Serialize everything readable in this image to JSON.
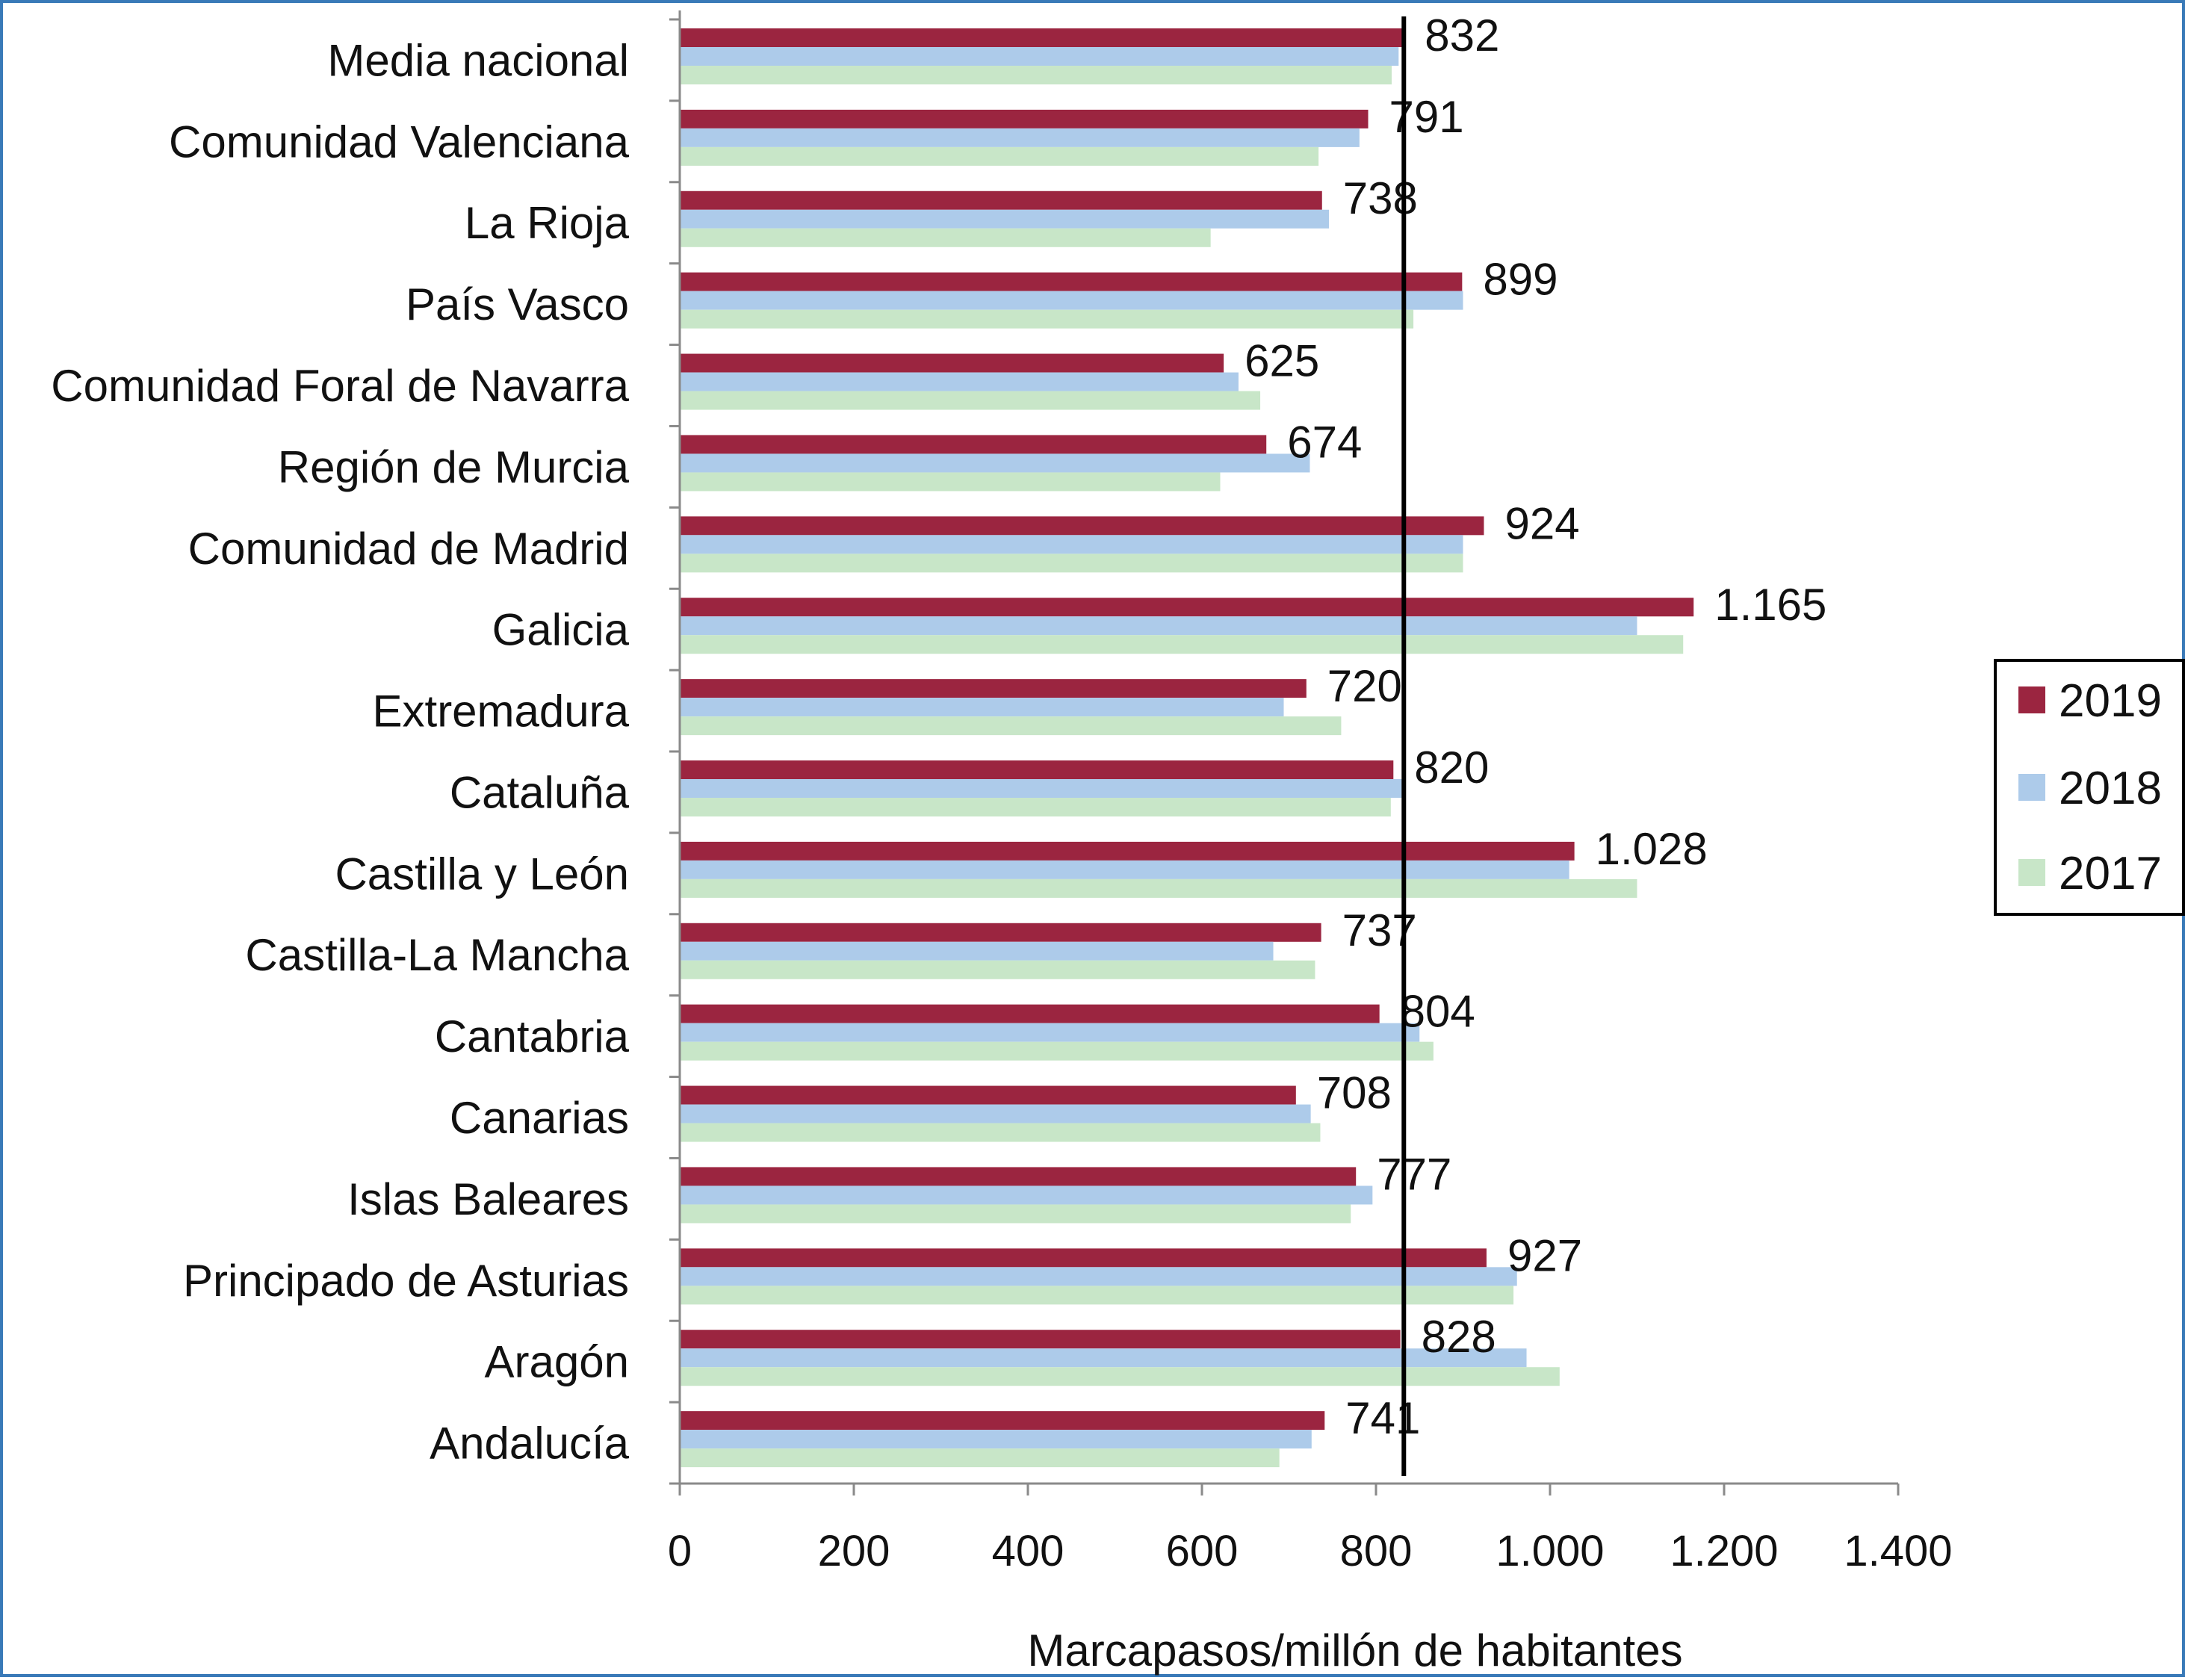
{
  "chart_data": {
    "type": "bar",
    "orientation": "horizontal",
    "categories": [
      "Media nacional",
      "Comunidad Valenciana",
      "La Rioja",
      "País Vasco",
      "Comunidad Foral de Navarra",
      "Región de Murcia",
      "Comunidad de Madrid",
      "Galicia",
      "Extremadura",
      "Cataluña",
      "Castilla y León",
      "Castilla-La Mancha",
      "Cantabria",
      "Canarias",
      "Islas Baleares",
      "Principado de Asturias",
      "Aragón",
      "Andalucía"
    ],
    "series": [
      {
        "name": "2019",
        "color": "#9b2540",
        "values": [
          832,
          791,
          738,
          899,
          625,
          674,
          924,
          1165,
          720,
          820,
          1028,
          737,
          804,
          708,
          777,
          927,
          828,
          741
        ]
      },
      {
        "name": "2018",
        "color": "#adcbea",
        "values": [
          826,
          781,
          746,
          900,
          642,
          724,
          900,
          1100,
          694,
          832,
          1022,
          682,
          850,
          725,
          796,
          962,
          973,
          726
        ]
      },
      {
        "name": "2017",
        "color": "#c8e6c8",
        "values": [
          818,
          734,
          610,
          843,
          667,
          621,
          900,
          1153,
          760,
          817,
          1100,
          730,
          866,
          736,
          771,
          958,
          1011,
          689
        ]
      }
    ],
    "data_labels": [
      "832",
      "791",
      "738",
      "899",
      "625",
      "674",
      "924",
      "1.165",
      "720",
      "820",
      "1.028",
      "737",
      "804",
      "708",
      "777",
      "927",
      "828",
      "741"
    ],
    "reference_line": 832,
    "xlabel": "Marcapasos/millón de habitantes",
    "ylabel": "",
    "title": "",
    "xlim": [
      0,
      1400
    ],
    "xticks": [
      0,
      200,
      400,
      600,
      800,
      1000,
      1200,
      1400
    ],
    "xtick_labels": [
      "0",
      "200",
      "400",
      "600",
      "800",
      "1.000",
      "1.200",
      "1.400"
    ],
    "grid": false,
    "legend_position": "right"
  }
}
